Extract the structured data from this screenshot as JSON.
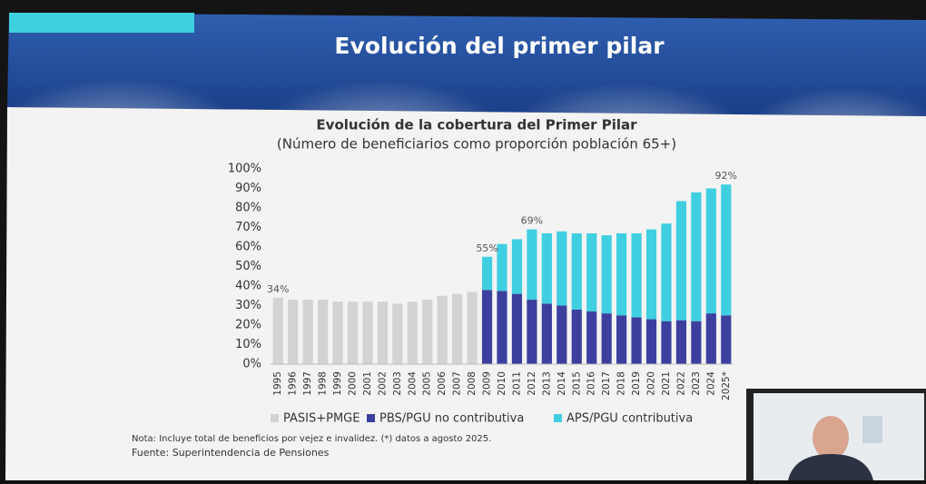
{
  "slide_title": "Evolución del primer pilar",
  "chart_data": {
    "type": "stacked-bar",
    "title": "Evolución de la cobertura del Primer Pilar",
    "subtitle": "(Número de beneficiarios como proporción población 65+)",
    "categories": [
      "1995",
      "1996",
      "1997",
      "1998",
      "1999",
      "2000",
      "2001",
      "2002",
      "2003",
      "2004",
      "2005",
      "2006",
      "2007",
      "2008",
      "2009",
      "2010",
      "2011",
      "2012",
      "2013",
      "2014",
      "2015",
      "2016",
      "2017",
      "2018",
      "2019",
      "2020",
      "2021",
      "2022",
      "2023",
      "2024",
      "2025*"
    ],
    "series": [
      {
        "name": "PASIS+PMGE",
        "color": "#d3d3d3",
        "values": [
          34,
          33,
          33,
          33,
          32,
          32,
          32,
          32,
          31,
          32,
          33,
          35,
          36,
          37,
          null,
          null,
          null,
          null,
          null,
          null,
          null,
          null,
          null,
          null,
          null,
          null,
          null,
          null,
          null,
          null,
          null
        ]
      },
      {
        "name": "PBS/PGU no contributiva",
        "color": "#3c3f9e",
        "values": [
          null,
          null,
          null,
          null,
          null,
          null,
          null,
          null,
          null,
          null,
          null,
          null,
          null,
          null,
          38,
          37.5,
          36,
          33,
          31,
          30,
          28,
          27,
          26,
          25,
          24,
          23,
          22,
          22.5,
          22,
          26,
          25
        ]
      },
      {
        "name": "APS/PGU contributiva",
        "color": "#3fcfe0",
        "values": [
          null,
          null,
          null,
          null,
          null,
          null,
          null,
          null,
          null,
          null,
          null,
          null,
          null,
          null,
          17,
          24,
          28,
          36,
          36,
          38,
          39,
          40,
          40,
          42,
          43,
          46,
          50,
          61,
          66,
          64,
          67
        ]
      }
    ],
    "total_labels": [
      {
        "category": "1995",
        "value": 34,
        "label": "34%"
      },
      {
        "category": "2009",
        "value": 55,
        "label": "55%"
      },
      {
        "category": "2012",
        "value": 69,
        "label": "69%"
      },
      {
        "category": "2025*",
        "value": 92,
        "label": "92%"
      }
    ],
    "ylim": [
      0,
      100
    ],
    "yticks": [
      {
        "value": 0,
        "label": "0%"
      },
      {
        "value": 10,
        "label": "10%"
      },
      {
        "value": 20,
        "label": "20%"
      },
      {
        "value": 30,
        "label": "30%"
      },
      {
        "value": 40,
        "label": "40%"
      },
      {
        "value": 50,
        "label": "50%"
      },
      {
        "value": 60,
        "label": "60%"
      },
      {
        "value": 70,
        "label": "70%"
      },
      {
        "value": 80,
        "label": "80%"
      },
      {
        "value": 90,
        "label": "90%"
      },
      {
        "value": 100,
        "label": "100%"
      }
    ],
    "grid": false,
    "legend": "bottom",
    "note": "Nota: Incluye total de beneficios por vejez e invalidez. (*) datos a agosto 2025.",
    "source": "Fuente: Superintendencia de Pensiones"
  }
}
